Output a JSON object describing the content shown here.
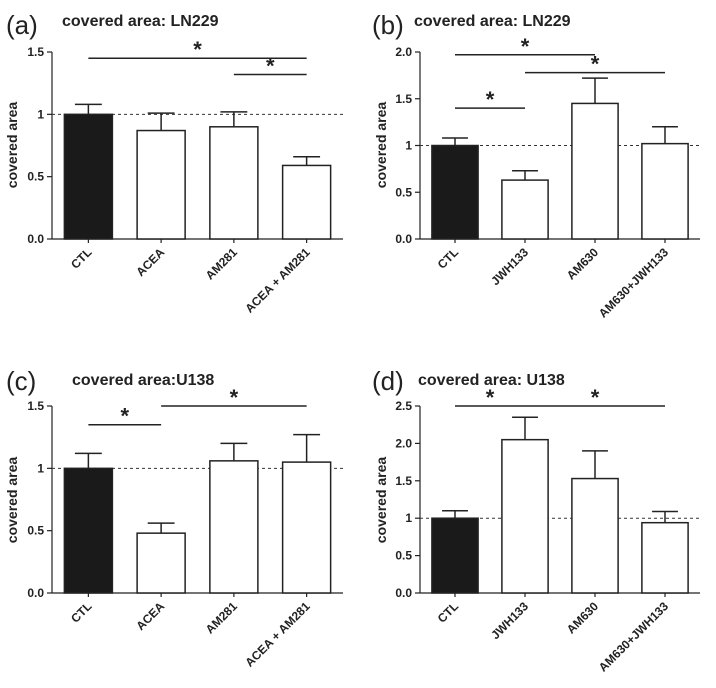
{
  "chart_data": [
    {
      "type": "bar",
      "panel": "(a)",
      "title": "covered area: LN229",
      "ylabel": "covered area",
      "xlabel": "",
      "ylim": [
        0,
        1.5
      ],
      "yticks": [
        "0.0",
        "0.5",
        "1",
        "1.5"
      ],
      "reference_line": 1,
      "categories": [
        "CTL",
        "ACEA",
        "AM281",
        "ACEA + AM281"
      ],
      "values": [
        1.0,
        0.87,
        0.9,
        0.59
      ],
      "errors": [
        0.08,
        0.14,
        0.12,
        0.07
      ],
      "bar_fills": [
        "#1a1a1a",
        "#ffffff",
        "#ffffff",
        "#ffffff"
      ],
      "significance": [
        {
          "from": 0,
          "to": 3,
          "y": 1.45,
          "label": "*"
        },
        {
          "from": 2,
          "to": 3,
          "y": 1.32,
          "label": "*"
        }
      ]
    },
    {
      "type": "bar",
      "panel": "(b)",
      "title": "covered area: LN229",
      "ylabel": "covered area",
      "xlabel": "",
      "ylim": [
        0,
        2.0
      ],
      "yticks": [
        "0.0",
        "0.5",
        "1",
        "1.5",
        "2.0"
      ],
      "reference_line": 1,
      "categories": [
        "CTL",
        "JWH133",
        "AM630",
        "AM630+JWH133"
      ],
      "values": [
        1.0,
        0.63,
        1.45,
        1.02
      ],
      "errors": [
        0.08,
        0.1,
        0.27,
        0.18
      ],
      "bar_fills": [
        "#1a1a1a",
        "#ffffff",
        "#ffffff",
        "#ffffff"
      ],
      "significance": [
        {
          "from": 0,
          "to": 2,
          "y": 1.97,
          "label": "*"
        },
        {
          "from": 1,
          "to": 3,
          "y": 1.78,
          "label": "*"
        },
        {
          "from": 0,
          "to": 1,
          "y": 1.4,
          "label": "*"
        }
      ]
    },
    {
      "type": "bar",
      "panel": "(c)",
      "title": "covered area:U138",
      "ylabel": "covered area",
      "xlabel": "",
      "ylim": [
        0,
        1.5
      ],
      "yticks": [
        "0.0",
        "0.5",
        "1",
        "1.5"
      ],
      "reference_line": 1,
      "categories": [
        "CTL",
        "ACEA",
        "AM281",
        "ACEA + AM281"
      ],
      "values": [
        1.0,
        0.48,
        1.06,
        1.05
      ],
      "errors": [
        0.12,
        0.08,
        0.14,
        0.22
      ],
      "bar_fills": [
        "#1a1a1a",
        "#ffffff",
        "#ffffff",
        "#ffffff"
      ],
      "significance": [
        {
          "from": 0,
          "to": 1,
          "y": 1.35,
          "label": "*"
        },
        {
          "from": 1,
          "to": 3,
          "y": 1.5,
          "label": "*"
        }
      ]
    },
    {
      "type": "bar",
      "panel": "(d)",
      "title": "covered area: U138",
      "ylabel": "covered area",
      "xlabel": "",
      "ylim": [
        0,
        2.5
      ],
      "yticks": [
        "0.0",
        "0.5",
        "1",
        "1.5",
        "2.0",
        "2.5"
      ],
      "reference_line": 1,
      "categories": [
        "CTL",
        "JWH133",
        "AM630",
        "AM630+JWH133"
      ],
      "values": [
        1.0,
        2.05,
        1.53,
        0.94
      ],
      "errors": [
        0.1,
        0.3,
        0.37,
        0.15
      ],
      "bar_fills": [
        "#1a1a1a",
        "#ffffff",
        "#ffffff",
        "#ffffff"
      ],
      "significance": [
        {
          "from": 0,
          "to": 1,
          "y": 2.5,
          "label": "*"
        },
        {
          "from": 1,
          "to": 3,
          "y": 2.5,
          "label": "*"
        }
      ]
    }
  ]
}
